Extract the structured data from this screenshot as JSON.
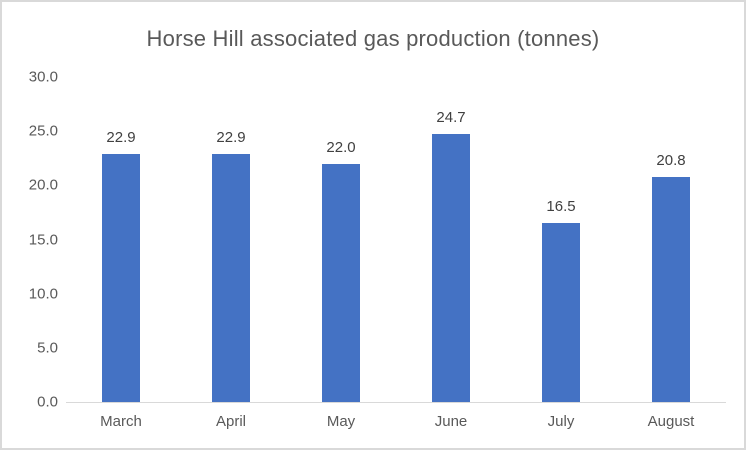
{
  "chart_data": {
    "type": "bar",
    "title": "Horse Hill associated gas production (tonnes)",
    "categories": [
      "March",
      "April",
      "May",
      "June",
      "July",
      "August"
    ],
    "values": [
      22.9,
      22.9,
      22.0,
      24.7,
      16.5,
      20.8
    ],
    "value_labels": [
      "22.9",
      "22.9",
      "22.0",
      "24.7",
      "16.5",
      "20.8"
    ],
    "y_tick_labels": [
      "30.0",
      "25.0",
      "20.0",
      "15.0",
      "10.0",
      "5.0",
      "0.0"
    ],
    "y_tick_values": [
      30,
      25,
      20,
      15,
      10,
      5,
      0
    ],
    "ylim": [
      0,
      30
    ],
    "xlabel": "",
    "ylabel": "",
    "grid": false,
    "legend": "none",
    "colors": {
      "bar": "#4472C4",
      "title": "#595959",
      "axis_labels": "#595959",
      "data_labels": "#404040",
      "axis_line": "#D9D9D9",
      "border": "#D9D9D9",
      "background": "#FFFFFF"
    }
  }
}
